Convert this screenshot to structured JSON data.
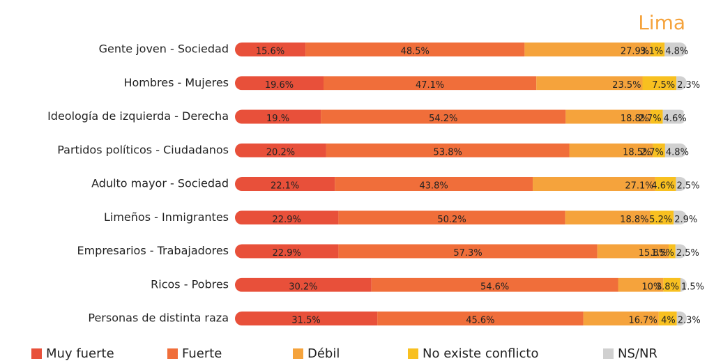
{
  "chart_data": {
    "type": "stacked-bar",
    "orientation": "horizontal",
    "title": "Lima",
    "categories": [
      "Gente joven - Sociedad",
      "Hombres - Mujeres",
      "Ideología de izquierda - Derecha",
      "Partidos políticos - Ciudadanos",
      "Adulto mayor - Sociedad",
      "Limeños - Inmigrantes",
      "Empresarios - Trabajadores",
      "Ricos - Pobres",
      "Personas de distinta raza"
    ],
    "xlim": [
      0,
      100
    ],
    "series": [
      {
        "name": "Muy fuerte",
        "color": "#e8503a",
        "values": [
          15.6,
          19.6,
          19,
          20.2,
          22.1,
          22.9,
          22.9,
          30.2,
          31.5
        ],
        "value_labels": [
          "15.6%",
          "19.6%",
          "19.%",
          "20.2%",
          "22.1%",
          "22.9%",
          "22.9%",
          "30.2%",
          "31.5%"
        ]
      },
      {
        "name": "Fuerte",
        "color": "#f06e3a",
        "values": [
          48.5,
          47.1,
          54.2,
          53.8,
          43.8,
          50.2,
          57.3,
          54.6,
          45.6
        ],
        "value_labels": [
          "48.5%",
          "47.1%",
          "54.2%",
          "53.8%",
          "43.8%",
          "50.2%",
          "57.3%",
          "54.6%",
          "45.6%"
        ]
      },
      {
        "name": "Débil",
        "color": "#f5a33c",
        "values": [
          27.9,
          23.5,
          18.8,
          18.5,
          27.1,
          18.8,
          15.8,
          10,
          16.7
        ],
        "value_labels": [
          "27.9%",
          "23.5%",
          "18.8%",
          "18.5%",
          "27.1%",
          "18.8%",
          "15.8%",
          "10%",
          "16.7%"
        ]
      },
      {
        "name": "No existe conflicto",
        "color": "#f8c020",
        "values": [
          3.1,
          7.5,
          2.7,
          2.7,
          4.6,
          5.2,
          1.5,
          3.8,
          4
        ],
        "value_labels": [
          "3.1%",
          "7.5%",
          "2.7%",
          "2.7%",
          "4.6%",
          "5.2%",
          "1.5%",
          "3.8%",
          "4%"
        ]
      },
      {
        "name": "NS/NR",
        "color": "#d0d0d0",
        "values": [
          4.8,
          2.3,
          4.6,
          4.8,
          2.5,
          2.9,
          2.5,
          1.5,
          2.3
        ],
        "value_labels": [
          "4.8%",
          "2.3%",
          "4.6%",
          "4.8%",
          "2.5%",
          "2.9%",
          "2.5%",
          "1.5%",
          "2.3%"
        ]
      }
    ]
  }
}
